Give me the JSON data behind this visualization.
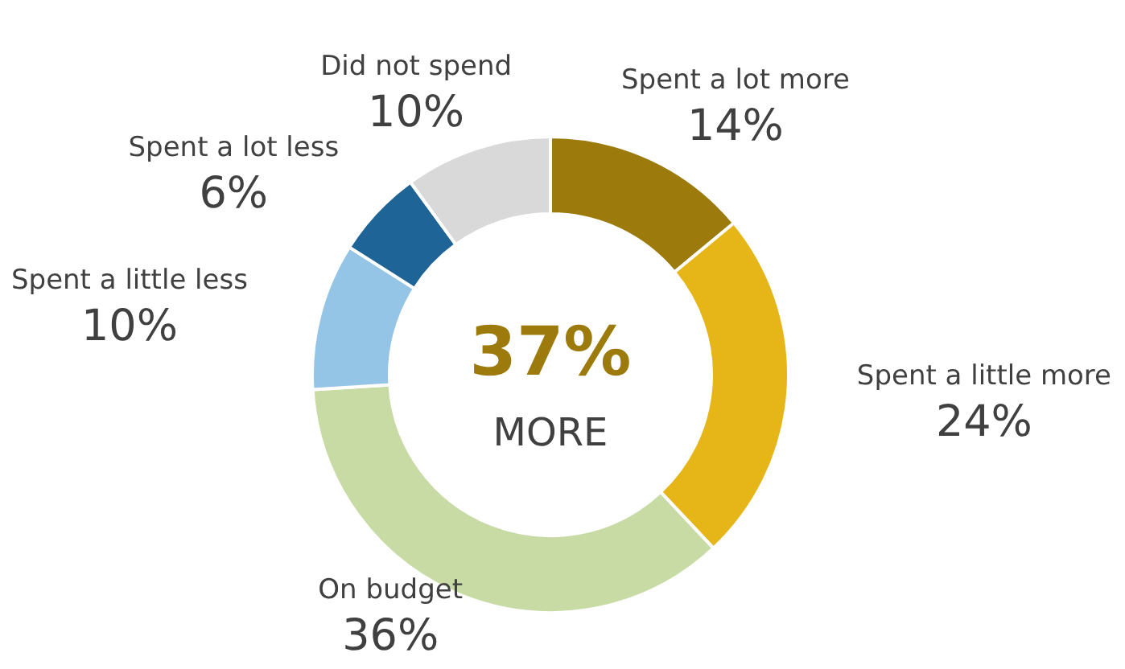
{
  "chart_data": {
    "type": "donut",
    "categories": [
      "Spent a lot more",
      "Spent a little more",
      "On budget",
      "Spent a little less",
      "Spent a lot less",
      "Did not spend"
    ],
    "values": [
      14,
      24,
      36,
      10,
      6,
      10
    ],
    "value_labels": [
      "14%",
      "24%",
      "36%",
      "10%",
      "6%",
      "10%"
    ],
    "colors": [
      "#9c7a0b",
      "#e6b619",
      "#c9dba5",
      "#94c4e6",
      "#1f6496",
      "#d9d9d9"
    ],
    "annotations": [
      "37%",
      "MORE"
    ],
    "legend": false
  }
}
